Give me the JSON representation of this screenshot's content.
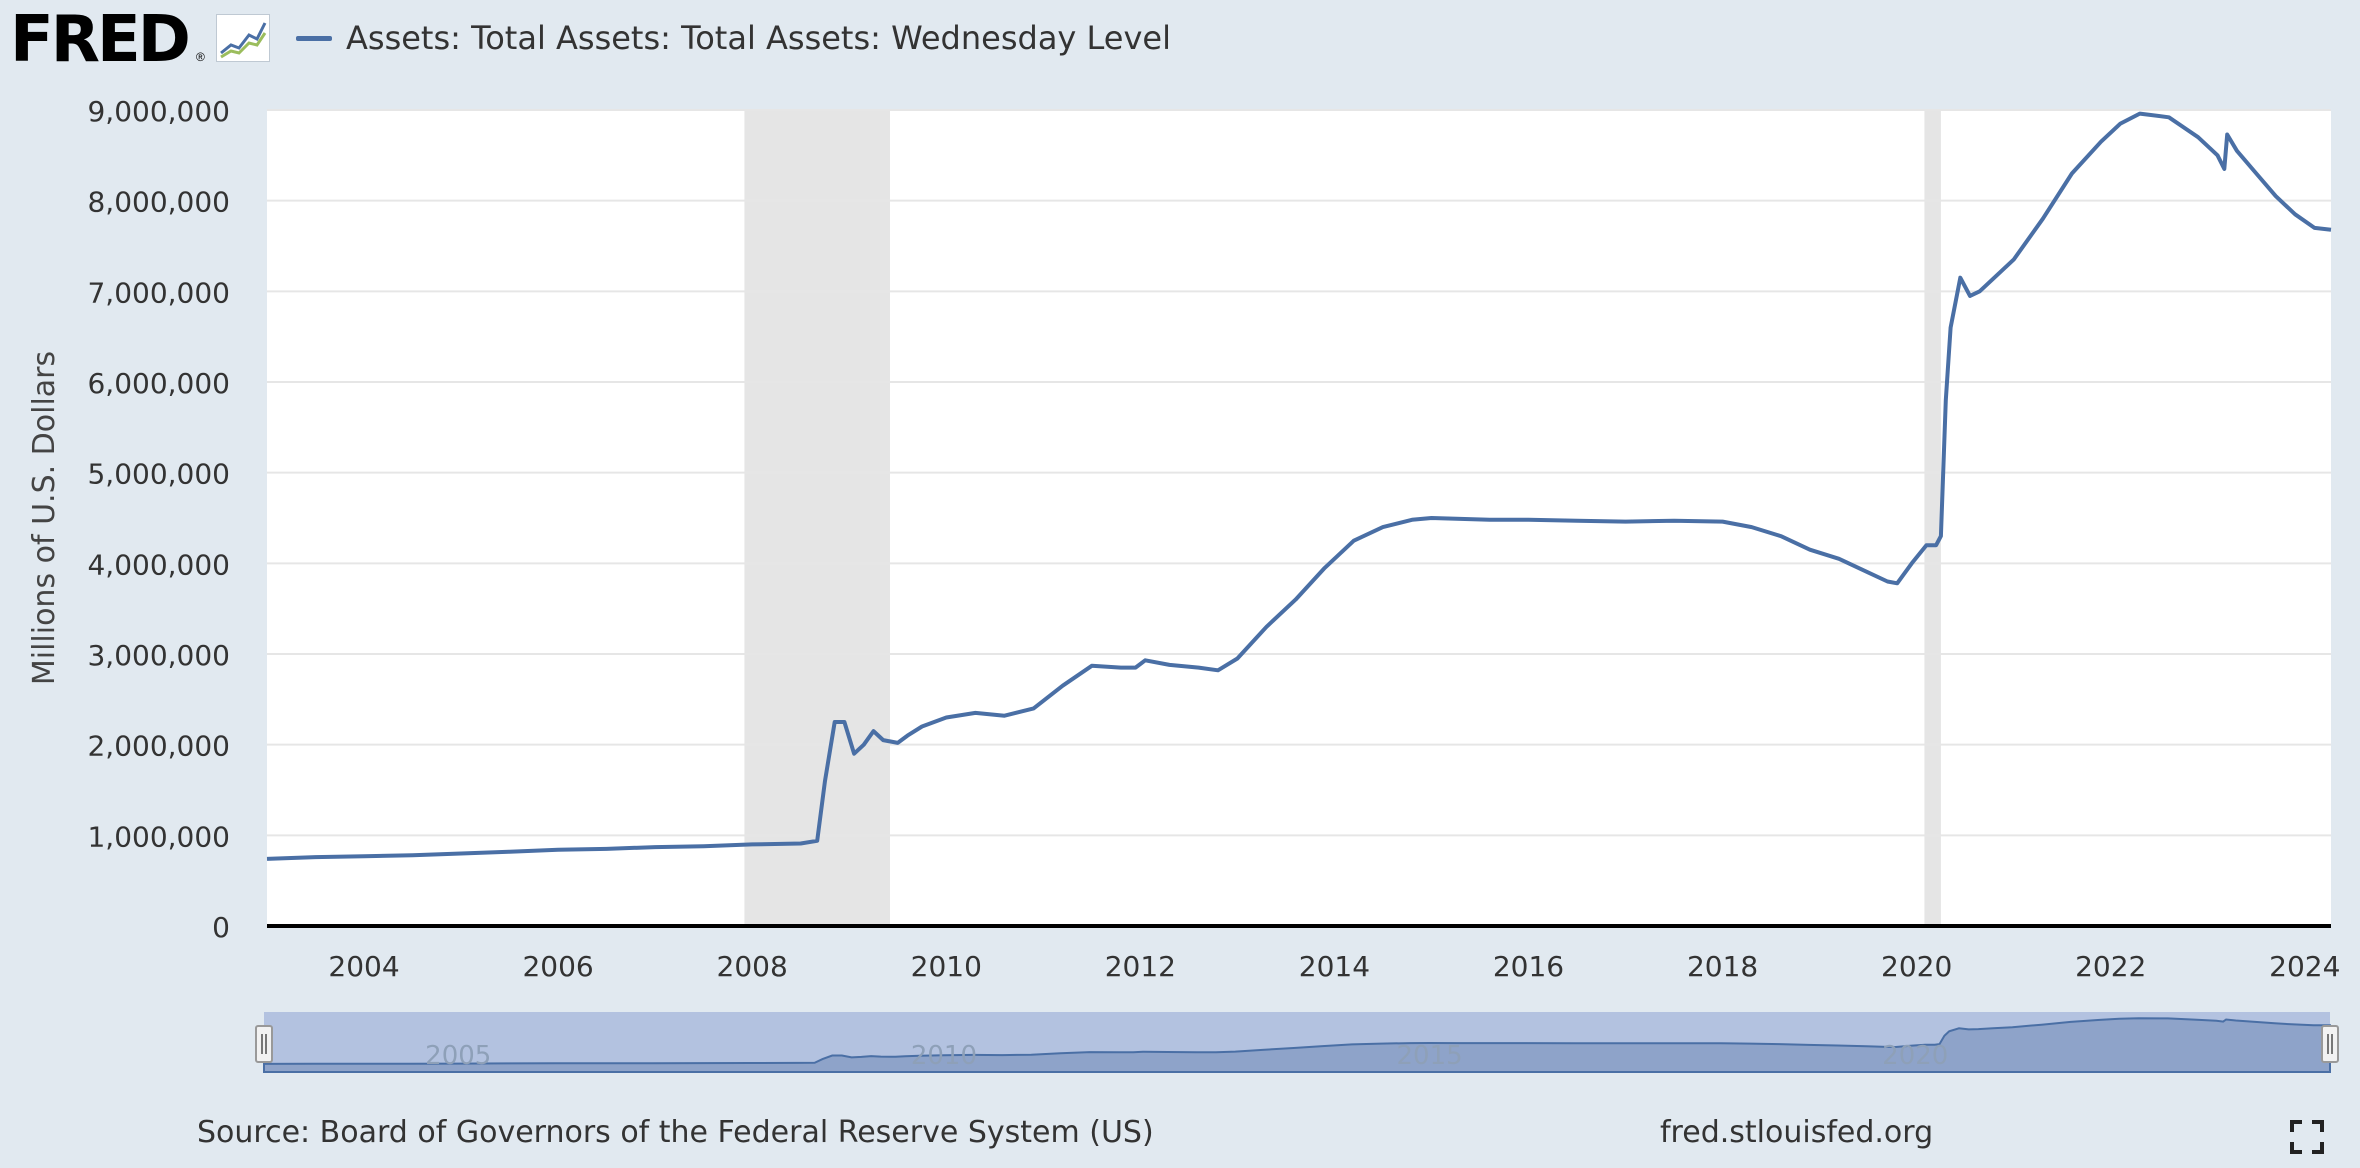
{
  "header": {
    "logo_text": "FRED",
    "logo_reg": "®",
    "legend_label": "Assets: Total Assets: Total Assets: Wednesday Level"
  },
  "footer": {
    "source": "Source: Board of Governors of the Federal Reserve System (US)",
    "url": "fred.stlouisfed.org"
  },
  "colors": {
    "series": "#4a6fa5",
    "recession": "#e5e5e5",
    "background": "#e1e9f0",
    "plot": "#ffffff",
    "navigator_fill": "#8ea3c9",
    "navigator_mask": "#b3c2e0"
  },
  "icons": {
    "logo_graph": "line-graph-icon",
    "fullscreen": "fullscreen-icon"
  },
  "chart_data": {
    "type": "line",
    "title": "",
    "xlabel": "",
    "ylabel": "Millions of U.S. Dollars",
    "xlim": [
      2003.0,
      2024.27
    ],
    "ylim": [
      0,
      9000000
    ],
    "grid": true,
    "legend": "top-left",
    "x_ticks": [
      "2004",
      "2006",
      "2008",
      "2010",
      "2012",
      "2014",
      "2016",
      "2018",
      "2020",
      "2022",
      "2024"
    ],
    "y_ticks": [
      "0",
      "1,000,000",
      "2,000,000",
      "3,000,000",
      "4,000,000",
      "5,000,000",
      "6,000,000",
      "7,000,000",
      "8,000,000",
      "9,000,000"
    ],
    "recessions": [
      [
        2007.92,
        2009.42
      ],
      [
        2020.08,
        2020.25
      ]
    ],
    "navigator_labels": [
      "2005",
      "2010",
      "2015",
      "2020"
    ],
    "series": [
      {
        "name": "Assets: Total Assets: Total Assets: Wednesday Level",
        "x": [
          2003.0,
          2003.5,
          2004.0,
          2004.5,
          2005.0,
          2005.5,
          2006.0,
          2006.5,
          2007.0,
          2007.5,
          2008.0,
          2008.5,
          2008.67,
          2008.75,
          2008.85,
          2008.95,
          2009.05,
          2009.15,
          2009.25,
          2009.35,
          2009.5,
          2009.6,
          2009.75,
          2010.0,
          2010.3,
          2010.6,
          2010.9,
          2011.2,
          2011.5,
          2011.8,
          2011.95,
          2012.05,
          2012.3,
          2012.6,
          2012.8,
          2013.0,
          2013.3,
          2013.6,
          2013.9,
          2014.2,
          2014.5,
          2014.8,
          2015.0,
          2015.3,
          2015.6,
          2016.0,
          2016.5,
          2017.0,
          2017.5,
          2018.0,
          2018.3,
          2018.6,
          2018.9,
          2019.2,
          2019.5,
          2019.7,
          2019.8,
          2019.95,
          2020.1,
          2020.2,
          2020.25,
          2020.3,
          2020.35,
          2020.45,
          2020.55,
          2020.65,
          2020.8,
          2021.0,
          2021.3,
          2021.6,
          2021.9,
          2022.1,
          2022.3,
          2022.6,
          2022.9,
          2023.1,
          2023.17,
          2023.2,
          2023.3,
          2023.5,
          2023.7,
          2023.9,
          2024.1,
          2024.27
        ],
        "values": [
          740000,
          760000,
          770000,
          780000,
          800000,
          820000,
          840000,
          850000,
          870000,
          880000,
          900000,
          910000,
          940000,
          1600000,
          2250000,
          2250000,
          1900000,
          2000000,
          2150000,
          2050000,
          2020000,
          2100000,
          2200000,
          2300000,
          2350000,
          2320000,
          2400000,
          2650000,
          2870000,
          2850000,
          2850000,
          2930000,
          2880000,
          2850000,
          2820000,
          2950000,
          3300000,
          3600000,
          3950000,
          4250000,
          4400000,
          4480000,
          4500000,
          4490000,
          4480000,
          4480000,
          4470000,
          4460000,
          4470000,
          4460000,
          4400000,
          4300000,
          4150000,
          4050000,
          3900000,
          3800000,
          3780000,
          4000000,
          4200000,
          4200000,
          4300000,
          5800000,
          6600000,
          7150000,
          6950000,
          7000000,
          7150000,
          7350000,
          7800000,
          8300000,
          8650000,
          8850000,
          8960000,
          8920000,
          8700000,
          8500000,
          8350000,
          8730000,
          8550000,
          8300000,
          8050000,
          7850000,
          7700000,
          7680000
        ]
      }
    ]
  }
}
